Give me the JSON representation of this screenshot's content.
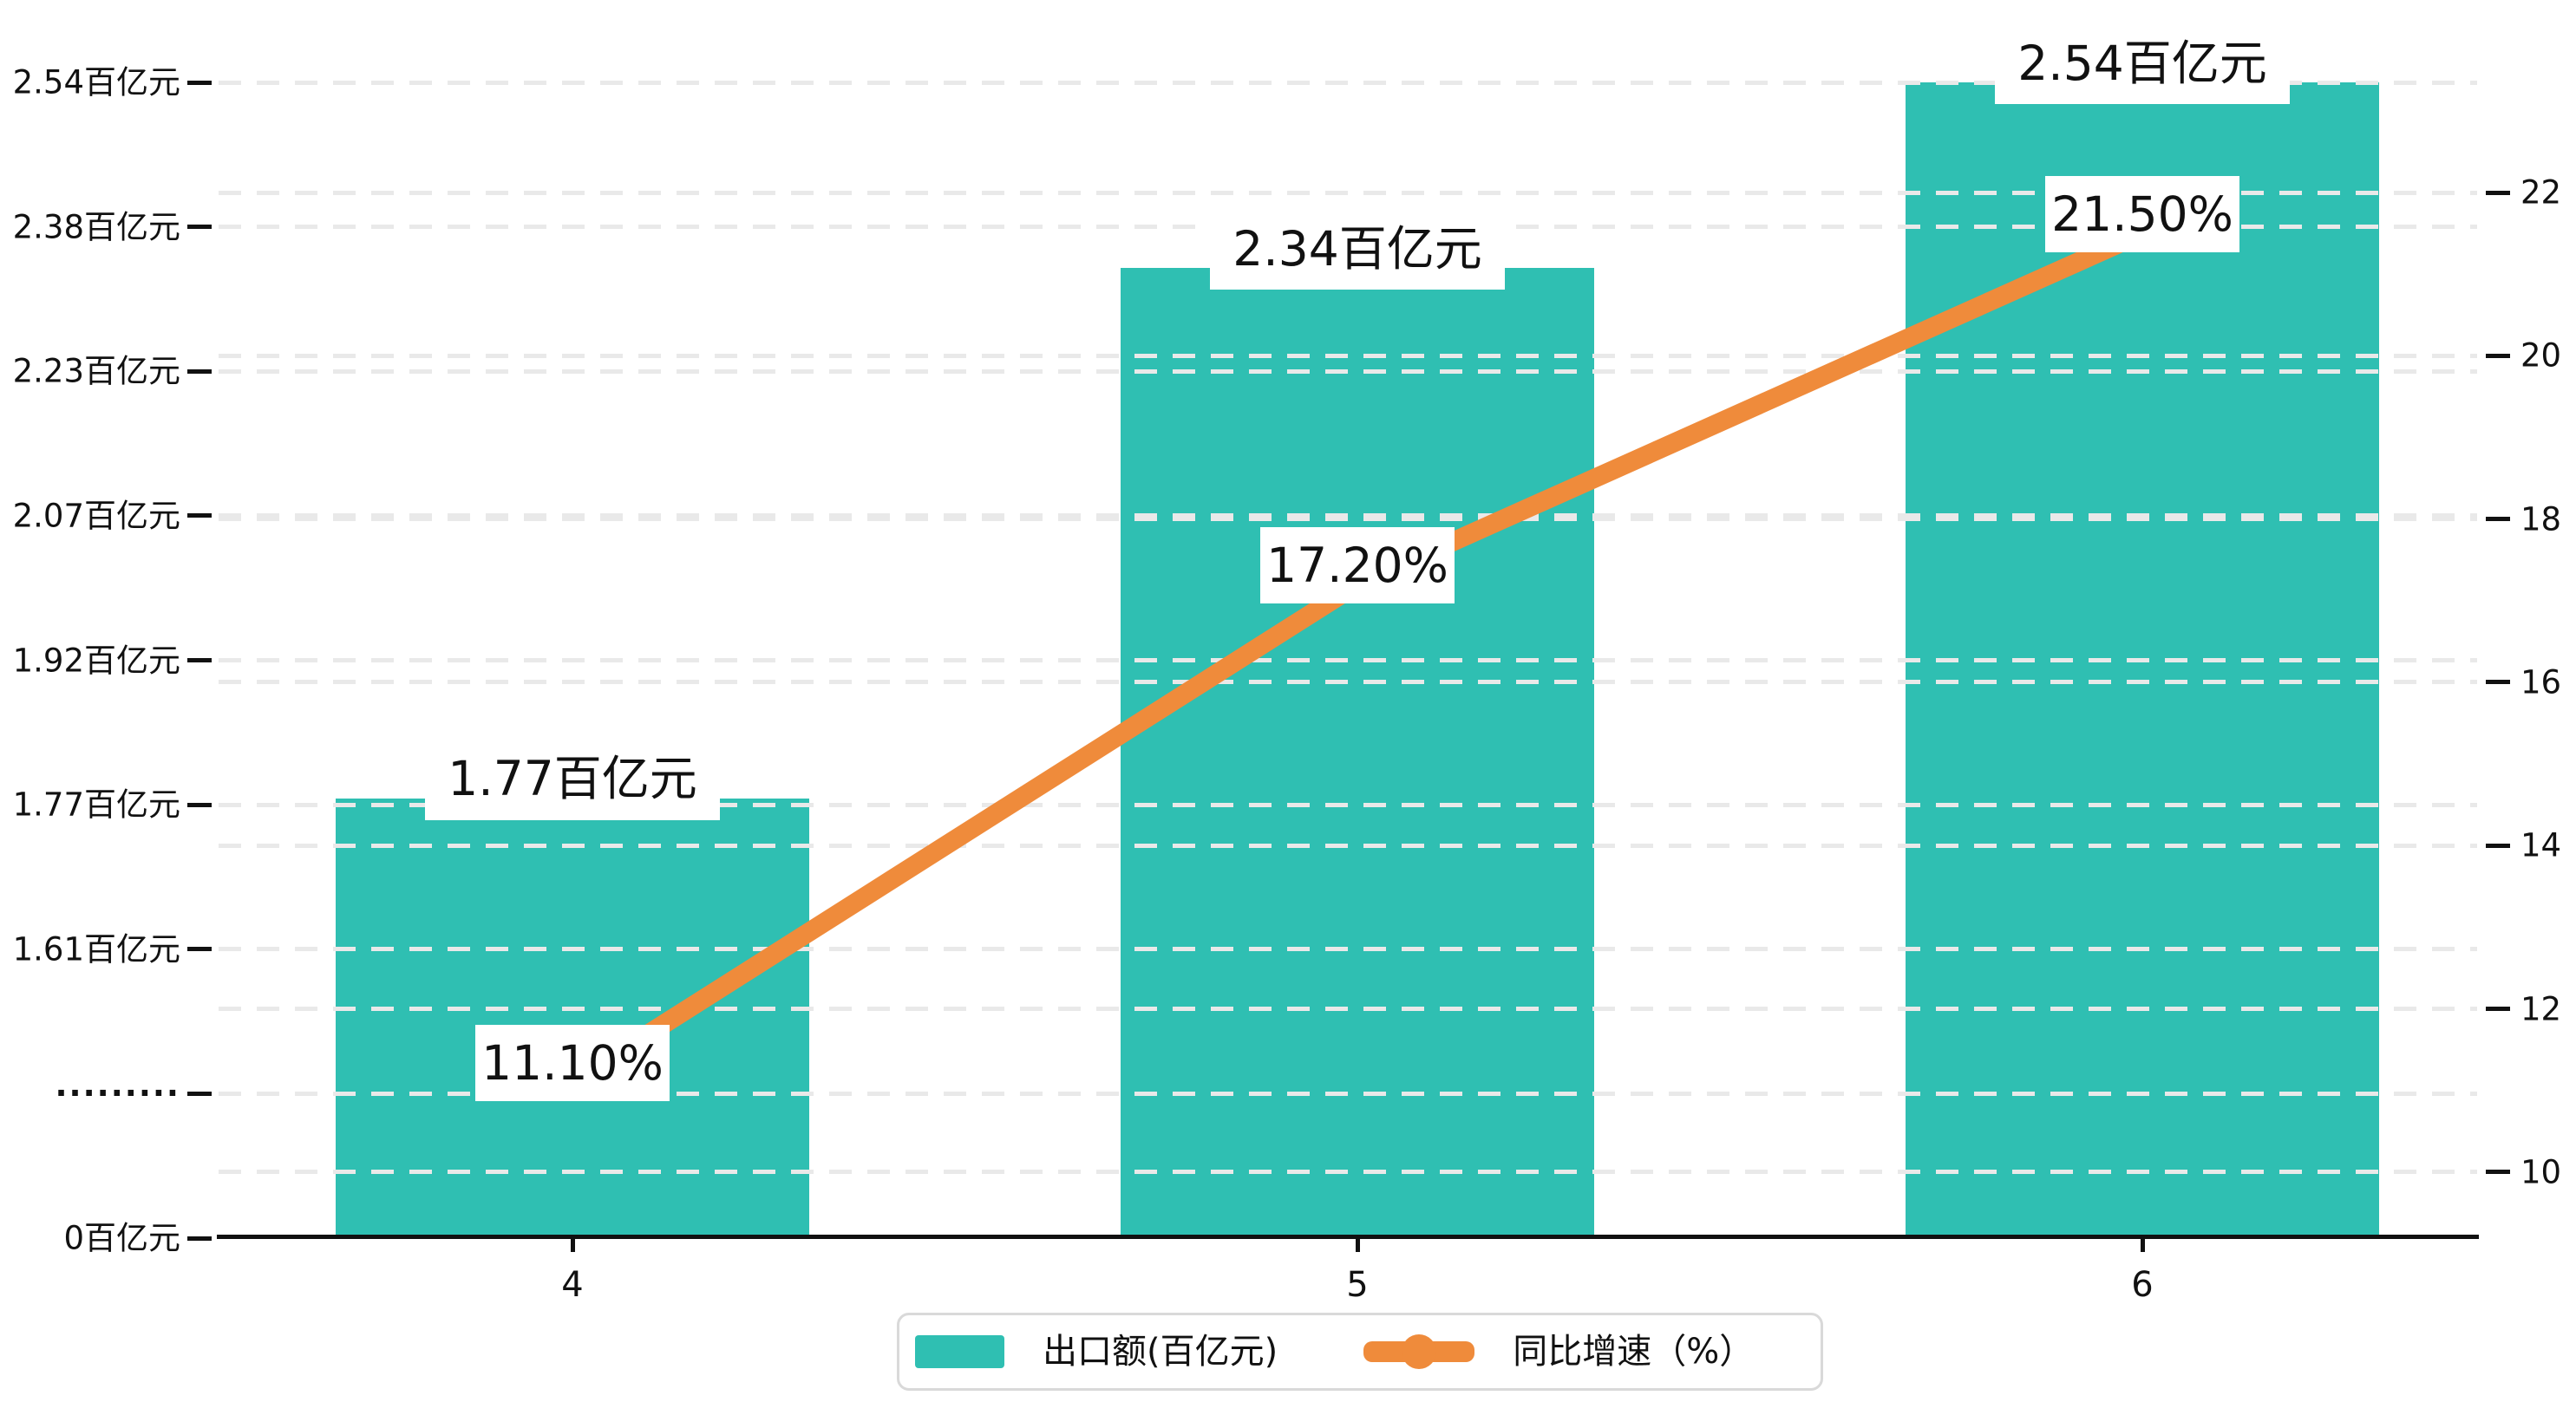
{
  "chart_data": {
    "type": "combo",
    "categories": [
      "4",
      "5",
      "6"
    ],
    "series": [
      {
        "name": "出口额(百亿元)",
        "type": "bar",
        "axis": "left",
        "values": [
          1.77,
          2.34,
          2.54
        ],
        "data_labels": [
          "1.77百亿元",
          "2.34百亿元",
          "2.54百亿元"
        ],
        "color": "#2fbfb2"
      },
      {
        "name": "同比增速（%）",
        "type": "line",
        "axis": "right",
        "values": [
          11.1,
          17.2,
          21.5
        ],
        "data_labels": [
          "11.10%",
          "17.20%",
          "21.50%"
        ],
        "color": "#ef8b3b"
      }
    ],
    "left_axis": {
      "tick_labels": [
        "2.54百亿元",
        "2.38百亿元",
        "2.23百亿元",
        "2.07百亿元",
        "1.92百亿元",
        "1.77百亿元",
        "1.61百亿元",
        "·········",
        "0百亿元"
      ],
      "max": 2.54,
      "tick_value_step": 0.1554,
      "break_label": "·········",
      "bottom_label": "0百亿元"
    },
    "right_axis": {
      "tick_labels": [
        "22",
        "20",
        "18",
        "16",
        "14",
        "12",
        "10"
      ],
      "min": 10,
      "max": 22,
      "tick_step": 2
    },
    "x_axis": {
      "tick_labels": [
        "4",
        "5",
        "6"
      ]
    },
    "legend": {
      "position": "bottom",
      "items": [
        {
          "label": "出口额(百亿元)",
          "marker": "bar-swatch",
          "color": "#2fbfb2"
        },
        {
          "label": "同比增速（%）",
          "marker": "line-dot",
          "color": "#ef8b3b"
        }
      ]
    },
    "grid": {
      "show": true,
      "style": "dashed",
      "color": "#e9e9e9"
    },
    "colors": {
      "bar": "#2fbfb2",
      "line": "#ef8b3b",
      "text": "#111111",
      "axis_line": "#111111",
      "grid": "#e9e9e9",
      "label_box_bg": "#ffffff",
      "legend_border": "#d9d9d9",
      "background": "#ffffff"
    }
  }
}
